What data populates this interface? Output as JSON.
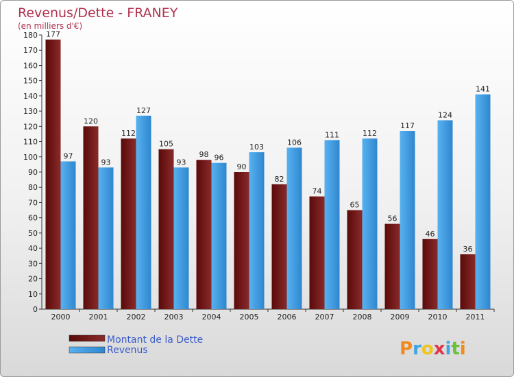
{
  "colors": {
    "title": "#b0314f",
    "dette": "#5a0a0a",
    "dette_light": "#7a1c1c",
    "revenus": "#4aa3e6",
    "revenus_dark": "#2f7fc4",
    "legend_text": "#3a5bc9",
    "axis_text": "#222222"
  },
  "chart_data": {
    "type": "bar",
    "title": "Revenus/Dette - FRANEY",
    "subtitle": "(en milliers d'€)",
    "categories": [
      "2000",
      "2001",
      "2002",
      "2003",
      "2004",
      "2005",
      "2006",
      "2007",
      "2008",
      "2009",
      "2010",
      "2011"
    ],
    "series": [
      {
        "name": "Montant de la Dette",
        "values": [
          177,
          120,
          112,
          105,
          98,
          90,
          82,
          74,
          65,
          56,
          46,
          36
        ]
      },
      {
        "name": "Revenus",
        "values": [
          97,
          93,
          127,
          93,
          96,
          103,
          106,
          111,
          112,
          117,
          124,
          141
        ]
      }
    ],
    "ylim": [
      0,
      180
    ],
    "yticks": [
      0,
      10,
      20,
      30,
      40,
      50,
      60,
      70,
      80,
      90,
      100,
      110,
      120,
      130,
      140,
      150,
      160,
      170,
      180
    ],
    "grid": false,
    "legend": "bottom-left"
  },
  "logo": {
    "text": "Proxiti"
  }
}
